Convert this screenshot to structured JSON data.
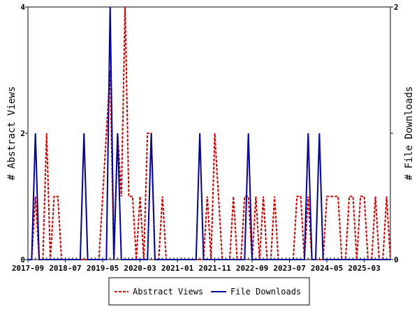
{
  "chart_data": {
    "type": "line",
    "x_tick_labels": [
      "2017-09",
      "2018-07",
      "2019-05",
      "2020-03",
      "2021-01",
      "2021-11",
      "2022-09",
      "2023-07",
      "2024-05",
      "2025-03"
    ],
    "y_left": {
      "label": "# Abstract Views",
      "ticks": [
        "0",
        "2",
        "4"
      ],
      "lim": [
        0,
        4
      ]
    },
    "y_right": {
      "label": "# File Downloads",
      "ticks": [
        "0",
        "1",
        "2"
      ],
      "lim": [
        0,
        2
      ]
    },
    "x_months_count": 98,
    "series": [
      {
        "name": "Abstract Views",
        "axis": "left",
        "color": "#cc0000",
        "style": "dashed",
        "values": [
          0,
          0,
          1,
          0,
          0,
          2,
          0,
          1,
          1,
          0,
          0,
          0,
          0,
          0,
          0,
          0,
          0,
          0,
          0,
          0,
          1,
          2,
          3,
          0,
          2,
          1,
          4,
          1,
          1,
          0,
          1,
          0,
          2,
          2,
          0,
          0,
          1,
          0,
          0,
          0,
          0,
          0,
          0,
          0,
          0,
          0,
          0,
          0,
          1,
          0,
          2,
          1,
          0,
          0,
          0,
          1,
          0,
          0,
          1,
          1,
          0,
          1,
          0,
          1,
          0,
          0,
          1,
          0,
          0,
          0,
          0,
          0,
          1,
          1,
          0,
          1,
          0,
          0,
          0,
          0,
          1,
          1,
          1,
          1,
          0,
          0,
          1,
          1,
          0,
          1,
          1,
          0,
          0,
          1,
          0,
          0,
          1,
          0
        ]
      },
      {
        "name": "File Downloads",
        "axis": "right",
        "color": "#000099",
        "style": "solid",
        "values": [
          0,
          0,
          1,
          0,
          0,
          0,
          0,
          0,
          0,
          0,
          0,
          0,
          0,
          0,
          0,
          1,
          0,
          0,
          0,
          0,
          0,
          0,
          2,
          0,
          1,
          0,
          0,
          0,
          0,
          0,
          0,
          0,
          0,
          1,
          0,
          0,
          0,
          0,
          0,
          0,
          0,
          0,
          0,
          0,
          0,
          0,
          1,
          0,
          0,
          0,
          0,
          0,
          0,
          0,
          0,
          0,
          0,
          0,
          0,
          1,
          0,
          0,
          0,
          0,
          0,
          0,
          0,
          0,
          0,
          0,
          0,
          0,
          0,
          0,
          0,
          1,
          0,
          0,
          1,
          0,
          0,
          0,
          0,
          0,
          0,
          0,
          0,
          0,
          0,
          0,
          0,
          0,
          0,
          0,
          0,
          0,
          0,
          0
        ]
      }
    ],
    "legend_position": "bottom",
    "grid": false
  }
}
